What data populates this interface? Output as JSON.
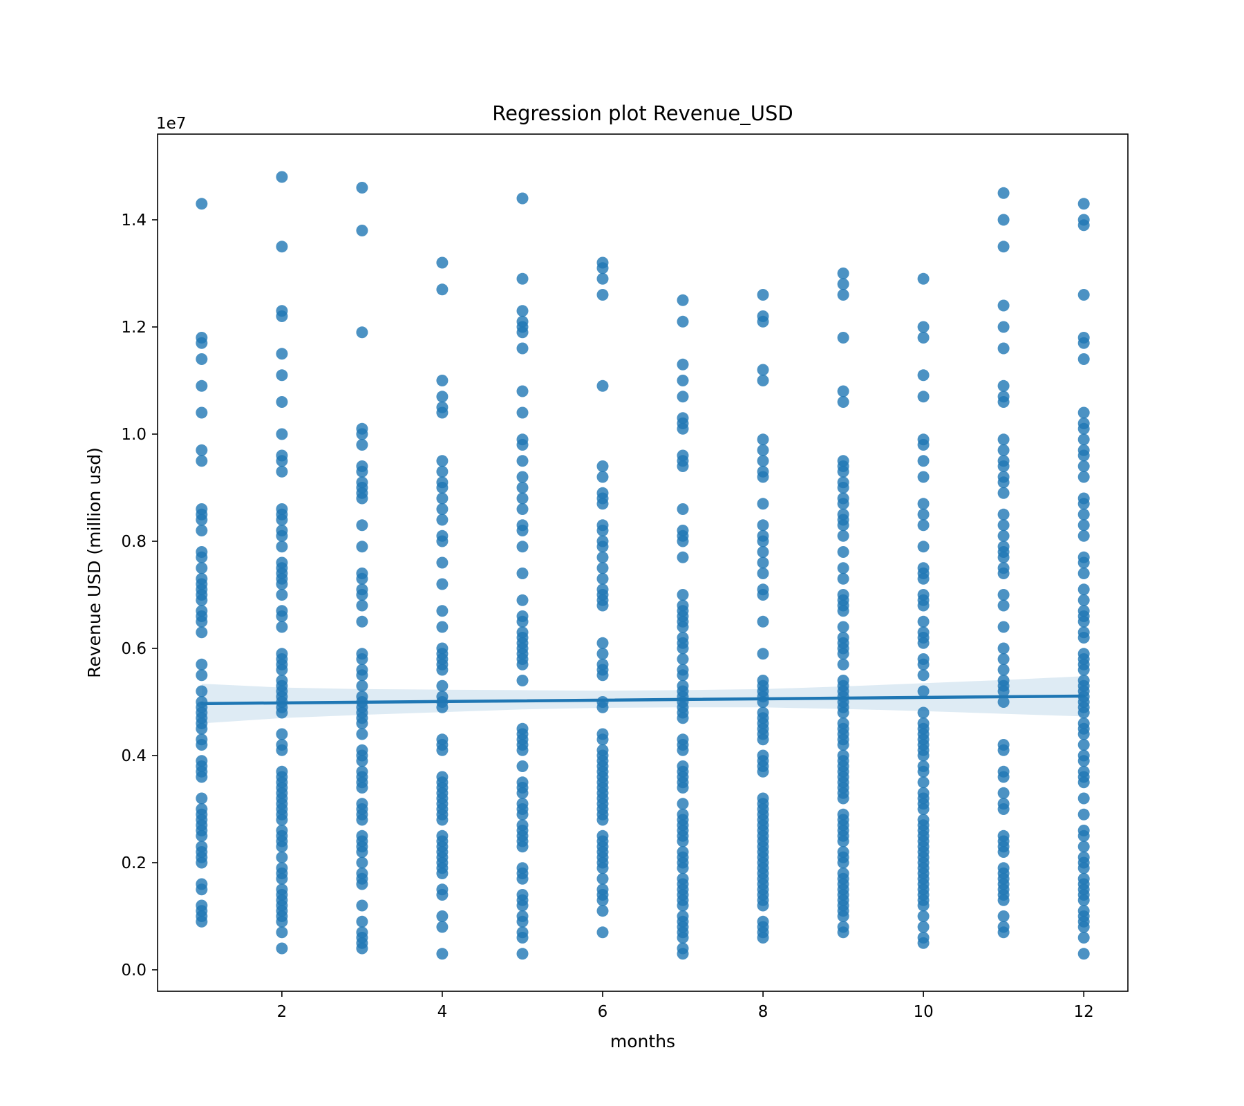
{
  "chart_data": {
    "type": "scatter",
    "title": "Regression plot Revenue_USD",
    "xlabel": "months",
    "ylabel": "Revenue USD (million usd)",
    "y_offset_text": "1e7",
    "xlim": [
      0.45,
      12.55
    ],
    "ylim": [
      -0.04,
      1.56
    ],
    "xticks": [
      2,
      4,
      6,
      8,
      10,
      12
    ],
    "yticks": [
      0.0,
      0.2,
      0.4,
      0.6,
      0.8,
      1.0,
      1.2,
      1.4
    ],
    "ytick_labels": [
      "0.0",
      "0.2",
      "0.4",
      "0.6",
      "0.8",
      "1.0",
      "1.2",
      "1.4"
    ],
    "grid": false,
    "colors": {
      "points": "#1f77b4",
      "line": "#1f77b4",
      "band": "#1f77b4"
    },
    "scatter_points": [
      {
        "x": 1,
        "y": [
          1.43,
          1.18,
          1.17,
          1.14,
          1.09,
          1.04,
          0.97,
          0.95,
          0.86,
          0.85,
          0.84,
          0.82,
          0.78,
          0.77,
          0.75,
          0.73,
          0.72,
          0.71,
          0.7,
          0.69,
          0.67,
          0.66,
          0.65,
          0.63,
          0.57,
          0.55,
          0.52,
          0.5,
          0.49,
          0.48,
          0.47,
          0.46,
          0.45,
          0.43,
          0.42,
          0.39,
          0.38,
          0.37,
          0.36,
          0.32,
          0.3,
          0.29,
          0.28,
          0.27,
          0.26,
          0.25,
          0.23,
          0.22,
          0.21,
          0.2,
          0.16,
          0.15,
          0.12,
          0.11,
          0.1,
          0.09
        ]
      },
      {
        "x": 2,
        "y": [
          1.48,
          1.35,
          1.23,
          1.22,
          1.15,
          1.11,
          1.06,
          1.0,
          0.96,
          0.95,
          0.93,
          0.86,
          0.85,
          0.84,
          0.82,
          0.81,
          0.79,
          0.76,
          0.75,
          0.74,
          0.73,
          0.72,
          0.7,
          0.67,
          0.66,
          0.64,
          0.59,
          0.58,
          0.57,
          0.56,
          0.54,
          0.53,
          0.52,
          0.51,
          0.5,
          0.49,
          0.48,
          0.44,
          0.42,
          0.41,
          0.37,
          0.36,
          0.35,
          0.34,
          0.33,
          0.32,
          0.31,
          0.3,
          0.29,
          0.28,
          0.26,
          0.25,
          0.24,
          0.23,
          0.21,
          0.19,
          0.18,
          0.17,
          0.15,
          0.14,
          0.13,
          0.12,
          0.11,
          0.1,
          0.09,
          0.07,
          0.04
        ]
      },
      {
        "x": 3,
        "y": [
          1.46,
          1.38,
          1.19,
          1.01,
          1.0,
          0.98,
          0.94,
          0.93,
          0.91,
          0.9,
          0.89,
          0.88,
          0.83,
          0.79,
          0.74,
          0.73,
          0.71,
          0.7,
          0.68,
          0.65,
          0.59,
          0.58,
          0.56,
          0.55,
          0.53,
          0.51,
          0.5,
          0.49,
          0.48,
          0.47,
          0.46,
          0.44,
          0.41,
          0.4,
          0.39,
          0.37,
          0.36,
          0.35,
          0.34,
          0.31,
          0.3,
          0.29,
          0.28,
          0.25,
          0.24,
          0.23,
          0.22,
          0.2,
          0.18,
          0.17,
          0.16,
          0.12,
          0.09,
          0.07,
          0.06,
          0.05,
          0.04
        ]
      },
      {
        "x": 4,
        "y": [
          1.32,
          1.27,
          1.1,
          1.07,
          1.05,
          1.04,
          0.95,
          0.93,
          0.91,
          0.9,
          0.88,
          0.86,
          0.84,
          0.81,
          0.8,
          0.76,
          0.72,
          0.67,
          0.64,
          0.6,
          0.59,
          0.58,
          0.57,
          0.56,
          0.53,
          0.51,
          0.5,
          0.49,
          0.43,
          0.42,
          0.41,
          0.36,
          0.35,
          0.34,
          0.33,
          0.32,
          0.31,
          0.3,
          0.29,
          0.28,
          0.25,
          0.24,
          0.23,
          0.22,
          0.21,
          0.2,
          0.19,
          0.18,
          0.15,
          0.14,
          0.1,
          0.08,
          0.03
        ]
      },
      {
        "x": 5,
        "y": [
          1.44,
          1.29,
          1.23,
          1.21,
          1.2,
          1.19,
          1.16,
          1.08,
          1.04,
          0.99,
          0.98,
          0.95,
          0.92,
          0.9,
          0.88,
          0.86,
          0.83,
          0.82,
          0.79,
          0.74,
          0.69,
          0.66,
          0.65,
          0.63,
          0.62,
          0.61,
          0.6,
          0.59,
          0.58,
          0.57,
          0.54,
          0.45,
          0.44,
          0.43,
          0.42,
          0.41,
          0.38,
          0.35,
          0.34,
          0.33,
          0.31,
          0.3,
          0.29,
          0.27,
          0.26,
          0.25,
          0.24,
          0.23,
          0.19,
          0.18,
          0.17,
          0.14,
          0.13,
          0.12,
          0.1,
          0.09,
          0.07,
          0.06,
          0.03
        ]
      },
      {
        "x": 6,
        "y": [
          1.32,
          1.31,
          1.29,
          1.26,
          1.09,
          0.94,
          0.92,
          0.89,
          0.88,
          0.87,
          0.83,
          0.82,
          0.8,
          0.79,
          0.77,
          0.75,
          0.73,
          0.71,
          0.7,
          0.69,
          0.68,
          0.61,
          0.59,
          0.57,
          0.56,
          0.55,
          0.5,
          0.49,
          0.44,
          0.43,
          0.41,
          0.4,
          0.39,
          0.38,
          0.37,
          0.36,
          0.35,
          0.34,
          0.33,
          0.32,
          0.31,
          0.3,
          0.29,
          0.28,
          0.25,
          0.24,
          0.23,
          0.22,
          0.21,
          0.2,
          0.19,
          0.17,
          0.15,
          0.14,
          0.13,
          0.11,
          0.07
        ]
      },
      {
        "x": 7,
        "y": [
          1.25,
          1.21,
          1.13,
          1.1,
          1.07,
          1.03,
          1.02,
          1.01,
          0.96,
          0.95,
          0.94,
          0.86,
          0.82,
          0.81,
          0.8,
          0.77,
          0.7,
          0.68,
          0.67,
          0.66,
          0.65,
          0.64,
          0.62,
          0.61,
          0.6,
          0.58,
          0.56,
          0.55,
          0.53,
          0.52,
          0.51,
          0.5,
          0.49,
          0.48,
          0.47,
          0.43,
          0.42,
          0.41,
          0.38,
          0.37,
          0.36,
          0.35,
          0.34,
          0.31,
          0.29,
          0.28,
          0.27,
          0.26,
          0.25,
          0.24,
          0.22,
          0.21,
          0.2,
          0.19,
          0.17,
          0.16,
          0.15,
          0.14,
          0.13,
          0.12,
          0.1,
          0.09,
          0.08,
          0.07,
          0.06,
          0.04,
          0.03
        ]
      },
      {
        "x": 8,
        "y": [
          1.26,
          1.22,
          1.21,
          1.12,
          1.1,
          0.99,
          0.97,
          0.95,
          0.93,
          0.92,
          0.87,
          0.83,
          0.81,
          0.8,
          0.78,
          0.76,
          0.74,
          0.71,
          0.7,
          0.65,
          0.59,
          0.54,
          0.53,
          0.52,
          0.51,
          0.5,
          0.48,
          0.47,
          0.46,
          0.45,
          0.44,
          0.43,
          0.4,
          0.39,
          0.38,
          0.37,
          0.32,
          0.31,
          0.3,
          0.29,
          0.28,
          0.27,
          0.26,
          0.25,
          0.24,
          0.23,
          0.22,
          0.21,
          0.2,
          0.19,
          0.18,
          0.17,
          0.16,
          0.15,
          0.14,
          0.13,
          0.12,
          0.09,
          0.08,
          0.07,
          0.06
        ]
      },
      {
        "x": 9,
        "y": [
          1.3,
          1.28,
          1.26,
          1.18,
          1.08,
          1.06,
          0.95,
          0.94,
          0.93,
          0.91,
          0.9,
          0.88,
          0.87,
          0.85,
          0.84,
          0.83,
          0.81,
          0.78,
          0.75,
          0.73,
          0.7,
          0.69,
          0.68,
          0.67,
          0.64,
          0.62,
          0.61,
          0.6,
          0.59,
          0.57,
          0.54,
          0.53,
          0.52,
          0.51,
          0.5,
          0.49,
          0.48,
          0.46,
          0.45,
          0.44,
          0.43,
          0.42,
          0.4,
          0.39,
          0.38,
          0.37,
          0.36,
          0.35,
          0.34,
          0.33,
          0.32,
          0.29,
          0.28,
          0.27,
          0.26,
          0.25,
          0.24,
          0.22,
          0.21,
          0.2,
          0.18,
          0.17,
          0.16,
          0.15,
          0.14,
          0.13,
          0.12,
          0.11,
          0.1,
          0.08,
          0.07
        ]
      },
      {
        "x": 10,
        "y": [
          1.29,
          1.2,
          1.18,
          1.11,
          1.07,
          0.99,
          0.98,
          0.95,
          0.92,
          0.87,
          0.85,
          0.83,
          0.79,
          0.75,
          0.74,
          0.73,
          0.7,
          0.69,
          0.68,
          0.65,
          0.63,
          0.62,
          0.61,
          0.58,
          0.57,
          0.55,
          0.52,
          0.48,
          0.46,
          0.45,
          0.44,
          0.43,
          0.42,
          0.41,
          0.4,
          0.38,
          0.37,
          0.35,
          0.33,
          0.32,
          0.31,
          0.3,
          0.28,
          0.27,
          0.26,
          0.25,
          0.24,
          0.23,
          0.22,
          0.21,
          0.2,
          0.19,
          0.18,
          0.17,
          0.16,
          0.15,
          0.14,
          0.13,
          0.12,
          0.1,
          0.08,
          0.06,
          0.05
        ]
      },
      {
        "x": 11,
        "y": [
          1.45,
          1.4,
          1.35,
          1.24,
          1.2,
          1.16,
          1.09,
          1.07,
          1.06,
          0.99,
          0.97,
          0.95,
          0.94,
          0.92,
          0.91,
          0.89,
          0.85,
          0.83,
          0.81,
          0.79,
          0.78,
          0.77,
          0.75,
          0.74,
          0.7,
          0.68,
          0.64,
          0.6,
          0.58,
          0.56,
          0.54,
          0.53,
          0.52,
          0.5,
          0.42,
          0.41,
          0.37,
          0.36,
          0.33,
          0.31,
          0.3,
          0.25,
          0.24,
          0.23,
          0.22,
          0.19,
          0.18,
          0.17,
          0.16,
          0.15,
          0.14,
          0.13,
          0.1,
          0.08,
          0.07
        ]
      },
      {
        "x": 12,
        "y": [
          1.43,
          1.4,
          1.39,
          1.26,
          1.18,
          1.17,
          1.14,
          1.04,
          1.02,
          1.01,
          0.99,
          0.97,
          0.96,
          0.94,
          0.92,
          0.88,
          0.87,
          0.85,
          0.83,
          0.81,
          0.77,
          0.76,
          0.74,
          0.71,
          0.69,
          0.67,
          0.66,
          0.65,
          0.63,
          0.62,
          0.59,
          0.58,
          0.57,
          0.56,
          0.54,
          0.53,
          0.52,
          0.51,
          0.5,
          0.49,
          0.48,
          0.46,
          0.45,
          0.44,
          0.42,
          0.4,
          0.39,
          0.37,
          0.36,
          0.35,
          0.32,
          0.29,
          0.26,
          0.25,
          0.23,
          0.21,
          0.2,
          0.19,
          0.17,
          0.16,
          0.15,
          0.14,
          0.13,
          0.11,
          0.1,
          0.09,
          0.08,
          0.06,
          0.03
        ]
      }
    ],
    "regression_line": {
      "x": [
        1,
        12
      ],
      "y": [
        0.497,
        0.511
      ]
    },
    "confidence_band": {
      "x": [
        1,
        2,
        3,
        4,
        5,
        6,
        7,
        8,
        9,
        10,
        11,
        12
      ],
      "lower": [
        0.46,
        0.47,
        0.476,
        0.481,
        0.486,
        0.489,
        0.49,
        0.49,
        0.487,
        0.483,
        0.478,
        0.473
      ],
      "upper": [
        0.534,
        0.527,
        0.524,
        0.523,
        0.522,
        0.521,
        0.522,
        0.524,
        0.529,
        0.535,
        0.541,
        0.548
      ]
    }
  }
}
